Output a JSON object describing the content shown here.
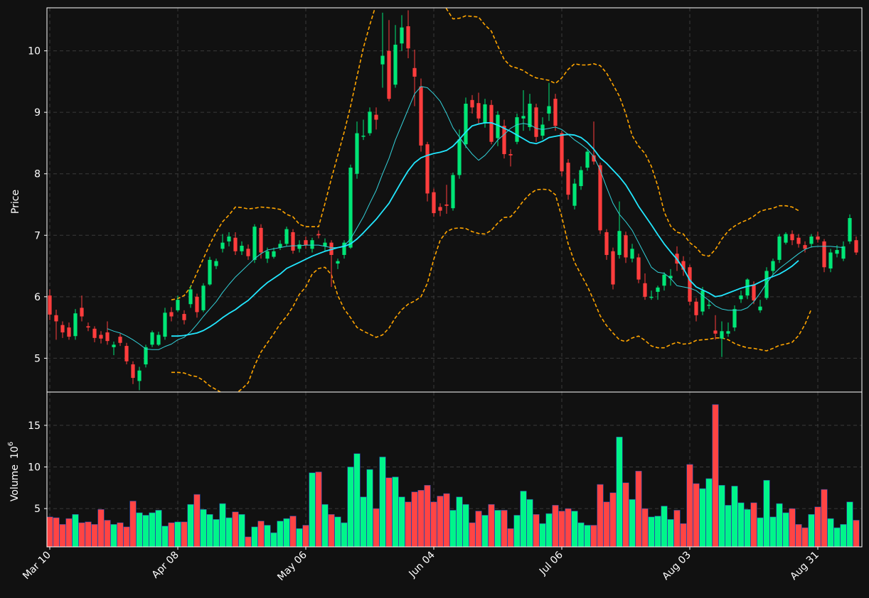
{
  "chart_data": {
    "type": "candlestick",
    "style": {
      "background": "#111111",
      "up_color": "#00e676",
      "down_color": "#ff3d3d",
      "volume_up_color": "#00f58a",
      "volume_down_color": "#ff4444",
      "volume_edge_color": "#2b4aa8",
      "ma_slow_color": "#22e7ff",
      "ma_fast_color": "#33d1d9",
      "band_color": "#ffa500",
      "grid_color": "#3a3a3a",
      "axis_color": "#ffffff",
      "grid": true
    },
    "x_tick_labels": [
      "Mar 10",
      "Apr 08",
      "May 06",
      "Jun 04",
      "Jul 06",
      "Aug 03",
      "Aug 31"
    ],
    "x_tick_index": [
      0,
      20,
      40,
      60,
      80,
      100,
      120
    ],
    "price_panel": {
      "ylabel": "Price",
      "ylim": [
        4.45,
        10.7
      ],
      "yticks": [
        5,
        6,
        7,
        8,
        9,
        10
      ]
    },
    "volume_panel": {
      "ylabel": "Volume",
      "ylabel_exponent": "10",
      "ylabel_exponent_power": "6",
      "ylim": [
        0.4,
        19
      ],
      "yticks": [
        5,
        10,
        15
      ]
    },
    "candles": [
      [
        6.02,
        5.71,
        6.12,
        5.62
      ],
      [
        5.7,
        5.6,
        5.79,
        5.3
      ],
      [
        5.54,
        5.42,
        5.6,
        5.33
      ],
      [
        5.5,
        5.35,
        5.58,
        5.3
      ],
      [
        5.36,
        5.73,
        5.8,
        5.3
      ],
      [
        5.82,
        5.68,
        6.02,
        5.6
      ],
      [
        5.52,
        5.5,
        5.58,
        5.44
      ],
      [
        5.48,
        5.33,
        5.52,
        5.26
      ],
      [
        5.38,
        5.32,
        5.44,
        5.24
      ],
      [
        5.42,
        5.28,
        5.6,
        5.22
      ],
      [
        5.18,
        5.22,
        5.27,
        5.05
      ],
      [
        5.35,
        5.25,
        5.4,
        5.2
      ],
      [
        5.2,
        4.95,
        5.25,
        4.9
      ],
      [
        4.9,
        4.68,
        4.95,
        4.58
      ],
      [
        4.63,
        4.8,
        4.86,
        4.48
      ],
      [
        4.9,
        5.18,
        5.22,
        4.85
      ],
      [
        5.22,
        5.42,
        5.45,
        5.18
      ],
      [
        5.22,
        5.38,
        5.43,
        5.2
      ],
      [
        5.35,
        5.74,
        5.82,
        5.3
      ],
      [
        5.75,
        5.68,
        5.83,
        5.6
      ],
      [
        5.78,
        5.95,
        6.02,
        5.75
      ],
      [
        5.72,
        5.62,
        5.78,
        5.55
      ],
      [
        5.88,
        6.12,
        6.18,
        5.82
      ],
      [
        6.0,
        5.75,
        6.05,
        5.66
      ],
      [
        5.78,
        6.18,
        6.22,
        5.75
      ],
      [
        6.2,
        6.6,
        6.65,
        6.18
      ],
      [
        6.5,
        6.58,
        6.62,
        6.45
      ],
      [
        6.78,
        6.88,
        7.02,
        6.72
      ],
      [
        6.9,
        6.98,
        7.05,
        6.82
      ],
      [
        6.96,
        6.74,
        7.05,
        6.68
      ],
      [
        6.74,
        6.83,
        6.9,
        6.68
      ],
      [
        6.78,
        6.66,
        6.85,
        6.6
      ],
      [
        6.6,
        7.14,
        7.18,
        6.55
      ],
      [
        7.12,
        6.72,
        7.18,
        6.62
      ],
      [
        6.62,
        6.74,
        6.8,
        6.55
      ],
      [
        6.65,
        6.74,
        6.8,
        6.62
      ],
      [
        6.8,
        6.86,
        6.92,
        6.76
      ],
      [
        6.86,
        7.1,
        7.14,
        6.82
      ],
      [
        7.05,
        6.75,
        7.1,
        6.7
      ],
      [
        6.78,
        6.85,
        6.92,
        6.72
      ],
      [
        6.92,
        6.84,
        6.98,
        6.78
      ],
      [
        6.78,
        6.92,
        6.96,
        6.72
      ],
      [
        7.02,
        7.0,
        7.08,
        6.95
      ],
      [
        6.82,
        6.88,
        6.95,
        6.75
      ],
      [
        6.88,
        6.68,
        6.92,
        6.16
      ],
      [
        6.54,
        6.58,
        6.62,
        6.45
      ],
      [
        6.68,
        6.88,
        6.92,
        6.62
      ],
      [
        6.8,
        8.1,
        8.15,
        6.78
      ],
      [
        8.0,
        8.66,
        8.85,
        7.92
      ],
      [
        8.62,
        8.62,
        8.88,
        8.55
      ],
      [
        8.66,
        9.01,
        9.08,
        8.62
      ],
      [
        8.96,
        8.88,
        9.08,
        8.72
      ],
      [
        9.78,
        9.92,
        10.62,
        9.4
      ],
      [
        10.0,
        9.22,
        10.5,
        9.18
      ],
      [
        9.45,
        10.1,
        10.42,
        9.4
      ],
      [
        10.12,
        10.38,
        10.58,
        10.0
      ],
      [
        10.4,
        10.04,
        10.66,
        9.88
      ],
      [
        9.72,
        9.58,
        10.02,
        9.1
      ],
      [
        9.42,
        8.46,
        9.55,
        8.36
      ],
      [
        8.48,
        7.68,
        8.52,
        7.55
      ],
      [
        7.7,
        7.36,
        7.76,
        7.3
      ],
      [
        7.46,
        7.4,
        7.52,
        7.31
      ],
      [
        7.5,
        7.48,
        7.82,
        7.35
      ],
      [
        7.44,
        7.98,
        8.02,
        7.4
      ],
      [
        7.98,
        8.56,
        8.72,
        7.92
      ],
      [
        8.48,
        9.14,
        9.24,
        8.42
      ],
      [
        9.2,
        9.08,
        9.28,
        8.98
      ],
      [
        9.15,
        8.9,
        9.32,
        8.8
      ],
      [
        8.82,
        9.13,
        9.22,
        8.75
      ],
      [
        9.12,
        8.52,
        9.2,
        8.48
      ],
      [
        8.58,
        8.96,
        9.02,
        8.45
      ],
      [
        8.78,
        8.32,
        8.88,
        8.25
      ],
      [
        8.32,
        8.3,
        8.4,
        8.12
      ],
      [
        8.52,
        8.92,
        8.98,
        8.48
      ],
      [
        8.9,
        8.94,
        9.36,
        8.7
      ],
      [
        8.76,
        9.14,
        9.3,
        8.7
      ],
      [
        9.08,
        8.6,
        9.14,
        8.52
      ],
      [
        8.62,
        8.8,
        8.92,
        8.56
      ],
      [
        8.98,
        9.1,
        9.48,
        8.86
      ],
      [
        9.22,
        8.78,
        9.3,
        8.7
      ],
      [
        8.66,
        8.04,
        8.7,
        7.96
      ],
      [
        8.18,
        7.66,
        8.24,
        7.58
      ],
      [
        7.48,
        7.84,
        7.92,
        7.42
      ],
      [
        7.8,
        8.06,
        8.12,
        7.74
      ],
      [
        8.1,
        8.36,
        8.4,
        8.05
      ],
      [
        8.3,
        8.2,
        8.85,
        8.15
      ],
      [
        8.14,
        7.08,
        8.18,
        7.02
      ],
      [
        7.05,
        6.68,
        7.1,
        6.6
      ],
      [
        6.74,
        6.2,
        6.8,
        6.12
      ],
      [
        6.68,
        7.07,
        7.55,
        6.62
      ],
      [
        7.0,
        6.64,
        7.06,
        6.55
      ],
      [
        6.62,
        6.78,
        6.86,
        6.56
      ],
      [
        6.64,
        6.28,
        6.7,
        6.22
      ],
      [
        6.22,
        6.0,
        6.38,
        5.95
      ],
      [
        6.0,
        6.0,
        6.1,
        5.95
      ],
      [
        6.08,
        6.15,
        6.18,
        5.95
      ],
      [
        6.18,
        6.36,
        6.4,
        6.1
      ],
      [
        6.3,
        6.34,
        6.45,
        6.18
      ],
      [
        6.7,
        6.54,
        6.82,
        6.42
      ],
      [
        6.58,
        6.44,
        6.66,
        6.34
      ],
      [
        6.48,
        5.92,
        6.52,
        5.86
      ],
      [
        5.92,
        5.7,
        5.98,
        5.6
      ],
      [
        5.76,
        6.1,
        6.16,
        5.7
      ],
      [
        5.87,
        5.87,
        5.95,
        5.8
      ],
      [
        5.45,
        5.4,
        5.7,
        5.3
      ],
      [
        5.32,
        5.44,
        5.6,
        5.02
      ],
      [
        5.4,
        5.44,
        5.58,
        5.35
      ],
      [
        5.5,
        5.8,
        5.86,
        5.44
      ],
      [
        5.96,
        6.02,
        6.1,
        5.9
      ],
      [
        6.02,
        6.28,
        6.3,
        5.96
      ],
      [
        6.2,
        5.94,
        6.25,
        5.88
      ],
      [
        5.78,
        5.84,
        5.95,
        5.74
      ],
      [
        5.98,
        6.42,
        6.48,
        5.95
      ],
      [
        6.42,
        6.58,
        6.62,
        6.36
      ],
      [
        6.6,
        6.98,
        7.02,
        6.55
      ],
      [
        6.88,
        7.02,
        7.05,
        6.85
      ],
      [
        7.02,
        6.92,
        7.08,
        6.84
      ],
      [
        6.96,
        6.86,
        7.02,
        6.8
      ],
      [
        6.84,
        6.78,
        6.9,
        6.72
      ],
      [
        6.86,
        6.98,
        7.02,
        6.8
      ],
      [
        6.98,
        6.93,
        7.06,
        6.88
      ],
      [
        6.9,
        6.48,
        6.94,
        6.4
      ],
      [
        6.46,
        6.72,
        6.78,
        6.4
      ],
      [
        6.7,
        6.76,
        6.84,
        6.64
      ],
      [
        6.62,
        6.82,
        6.9,
        6.58
      ],
      [
        6.9,
        7.28,
        7.34,
        6.86
      ],
      [
        6.92,
        6.72,
        6.98,
        6.68
      ]
    ],
    "volumes": [
      4.0,
      3.9,
      3.1,
      3.8,
      4.3,
      3.3,
      3.4,
      3.1,
      4.9,
      3.6,
      3.1,
      3.3,
      2.8,
      5.9,
      4.5,
      4.2,
      4.5,
      4.8,
      2.9,
      3.3,
      3.4,
      3.4,
      5.5,
      6.7,
      4.9,
      4.3,
      3.7,
      5.6,
      3.9,
      4.6,
      4.3,
      1.6,
      2.8,
      3.5,
      3.0,
      2.1,
      3.5,
      3.8,
      4.1,
      2.6,
      3.0,
      9.3,
      9.4,
      5.5,
      4.3,
      4.0,
      3.3,
      10.0,
      11.6,
      6.4,
      9.7,
      5.0,
      11.2,
      8.7,
      8.8,
      6.4,
      5.8,
      7.0,
      7.2,
      7.8,
      5.8,
      6.5,
      6.8,
      4.8,
      6.4,
      5.5,
      3.3,
      4.7,
      4.2,
      5.5,
      4.8,
      4.8,
      2.6,
      4.2,
      7.1,
      6.1,
      4.3,
      3.2,
      4.4,
      5.4,
      4.7,
      5.0,
      4.7,
      3.3,
      3.0,
      3.0,
      7.9,
      5.8,
      6.9,
      13.6,
      8.1,
      6.1,
      9.5,
      5.0,
      4.0,
      4.1,
      5.3,
      3.7,
      4.8,
      3.2,
      10.3,
      8.0,
      7.4,
      8.6,
      17.5,
      7.8,
      5.4,
      7.7,
      5.7,
      4.9,
      5.7,
      3.9,
      8.4,
      4.0,
      5.6,
      4.5,
      5.0,
      3.1,
      2.7,
      4.3,
      5.2,
      7.3,
      3.8,
      2.7,
      3.1,
      5.8,
      3.6
    ],
    "ma_fast": [
      null,
      null,
      null,
      null,
      null,
      null,
      null,
      null,
      null,
      5.48,
      5.44,
      5.41,
      5.36,
      5.3,
      5.23,
      5.15,
      5.14,
      5.14,
      5.19,
      5.23,
      5.3,
      5.34,
      5.43,
      5.55,
      5.68,
      5.8,
      5.92,
      6.07,
      6.2,
      6.32,
      6.42,
      6.52,
      6.62,
      6.7,
      6.76,
      6.78,
      6.8,
      6.82,
      6.83,
      6.83,
      6.84,
      6.84,
      6.84,
      6.82,
      6.8,
      6.8,
      6.83,
      6.94,
      7.12,
      7.3,
      7.52,
      7.73,
      8.0,
      8.25,
      8.55,
      8.8,
      9.05,
      9.3,
      9.42,
      9.4,
      9.3,
      9.18,
      8.98,
      8.75,
      8.6,
      8.45,
      8.32,
      8.22,
      8.3,
      8.42,
      8.55,
      8.64,
      8.74,
      8.8,
      8.82,
      8.8,
      8.74,
      8.72,
      8.74,
      8.76,
      8.72,
      8.64,
      8.55,
      8.48,
      8.4,
      8.28,
      8.06,
      7.78,
      7.52,
      7.34,
      7.22,
      7.08,
      6.88,
      6.68,
      6.48,
      6.4,
      6.38,
      6.3,
      6.18,
      6.16,
      6.14,
      6.1,
      6.02,
      5.94,
      5.85,
      5.8,
      5.78,
      5.78,
      5.78,
      5.82,
      5.92,
      6.06,
      6.22,
      6.36,
      6.46,
      6.54,
      6.62,
      6.7,
      6.77,
      6.81,
      6.82,
      6.82,
      6.82,
      6.81,
      6.8
    ],
    "ma_slow": [
      null,
      null,
      null,
      null,
      null,
      null,
      null,
      null,
      null,
      null,
      null,
      null,
      null,
      null,
      null,
      null,
      null,
      null,
      null,
      5.36,
      5.36,
      5.37,
      5.39,
      5.41,
      5.45,
      5.51,
      5.58,
      5.66,
      5.73,
      5.79,
      5.87,
      5.94,
      6.04,
      6.14,
      6.23,
      6.3,
      6.37,
      6.46,
      6.51,
      6.56,
      6.61,
      6.66,
      6.7,
      6.74,
      6.77,
      6.8,
      6.82,
      6.86,
      6.94,
      7.04,
      7.15,
      7.26,
      7.39,
      7.52,
      7.7,
      7.88,
      8.05,
      8.18,
      8.26,
      8.3,
      8.33,
      8.35,
      8.38,
      8.45,
      8.56,
      8.68,
      8.78,
      8.81,
      8.83,
      8.83,
      8.79,
      8.74,
      8.69,
      8.63,
      8.57,
      8.51,
      8.49,
      8.53,
      8.59,
      8.61,
      8.63,
      8.64,
      8.63,
      8.59,
      8.51,
      8.4,
      8.26,
      8.17,
      8.06,
      7.95,
      7.82,
      7.65,
      7.47,
      7.32,
      7.17,
      7.01,
      6.86,
      6.73,
      6.61,
      6.46,
      6.27,
      6.16,
      6.11,
      6.06,
      6.0,
      6.02,
      6.06,
      6.1,
      6.14,
      6.17,
      6.19,
      6.24,
      6.29,
      6.33,
      6.37,
      6.43,
      6.5,
      6.59
    ],
    "band_upper": [
      null,
      null,
      null,
      null,
      null,
      null,
      null,
      null,
      null,
      null,
      null,
      null,
      null,
      null,
      null,
      null,
      null,
      null,
      null,
      5.95,
      5.97,
      6.02,
      6.16,
      6.39,
      6.62,
      6.85,
      7.05,
      7.22,
      7.33,
      7.46,
      7.45,
      7.43,
      7.44,
      7.46,
      7.45,
      7.44,
      7.42,
      7.34,
      7.3,
      7.18,
      7.14,
      7.14,
      7.14,
      7.52,
      7.92,
      8.3,
      8.68,
      9.1,
      9.58,
      10.05,
      10.42,
      10.76,
      11.05,
      11.3,
      11.45,
      11.55,
      11.52,
      11.42,
      11.32,
      11.22,
      11.1,
      10.9,
      10.68,
      10.52,
      10.53,
      10.57,
      10.56,
      10.55,
      10.42,
      10.32,
      10.08,
      9.86,
      9.75,
      9.72,
      9.68,
      9.61,
      9.56,
      9.54,
      9.52,
      9.47,
      9.56,
      9.7,
      9.79,
      9.77,
      9.77,
      9.79,
      9.76,
      9.64,
      9.45,
      9.26,
      8.98,
      8.62,
      8.45,
      8.33,
      8.12,
      7.8,
      7.38,
      7.15,
      7.05,
      7.02,
      6.88,
      6.8,
      6.68,
      6.66,
      6.77,
      6.94,
      7.07,
      7.15,
      7.21,
      7.25,
      7.31,
      7.39,
      7.42,
      7.44,
      7.48,
      7.48,
      7.46,
      7.4
    ],
    "band_lower": [
      null,
      null,
      null,
      null,
      null,
      null,
      null,
      null,
      null,
      null,
      null,
      null,
      null,
      null,
      null,
      null,
      null,
      null,
      null,
      4.77,
      4.77,
      4.76,
      4.72,
      4.7,
      4.64,
      4.55,
      4.49,
      4.43,
      4.4,
      4.42,
      4.5,
      4.6,
      4.88,
      5.1,
      5.25,
      5.4,
      5.56,
      5.68,
      5.84,
      6.04,
      6.16,
      6.37,
      6.46,
      6.48,
      6.36,
      6.02,
      5.8,
      5.66,
      5.5,
      5.44,
      5.39,
      5.34,
      5.38,
      5.49,
      5.66,
      5.79,
      5.88,
      5.93,
      6.0,
      6.22,
      6.61,
      6.92,
      7.06,
      7.11,
      7.12,
      7.11,
      7.06,
      7.03,
      7.02,
      7.08,
      7.2,
      7.29,
      7.3,
      7.42,
      7.56,
      7.67,
      7.74,
      7.75,
      7.74,
      7.66,
      7.3,
      6.86,
      6.56,
      6.36,
      6.17,
      5.94,
      5.69,
      5.53,
      5.41,
      5.3,
      5.27,
      5.33,
      5.36,
      5.29,
      5.2,
      5.17,
      5.17,
      5.22,
      5.26,
      5.23,
      5.24,
      5.29,
      5.3,
      5.31,
      5.33,
      5.33,
      5.3,
      5.24,
      5.2,
      5.17,
      5.16,
      5.14,
      5.12,
      5.16,
      5.21,
      5.23,
      5.26,
      5.37,
      5.55,
      5.8
    ]
  }
}
